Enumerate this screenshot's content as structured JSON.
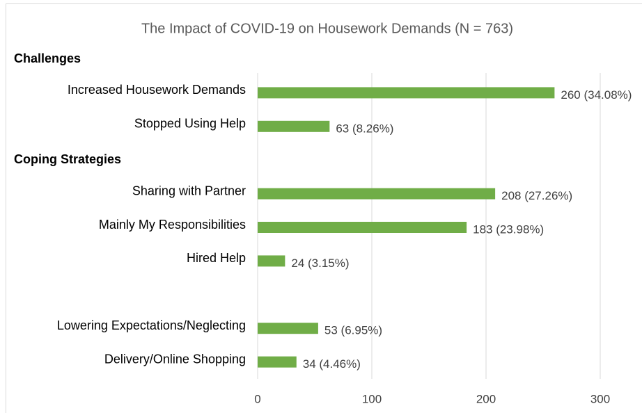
{
  "chart_data": {
    "type": "bar",
    "orientation": "horizontal",
    "title": "The Impact of COVID-19 on Housework Demands (N = 763)",
    "color": "#70ad47",
    "groups": [
      {
        "name": "Challenges",
        "categories": [
          "Increased Housework Demands",
          "Stopped Using Help"
        ],
        "values": [
          260,
          63
        ],
        "value_labels": [
          "260 (34.08%)",
          "63 (8.26%)"
        ]
      },
      {
        "name": "Coping Strategies",
        "categories": [
          "Sharing with Partner",
          "Mainly My Responsibilities",
          "Hired Help",
          null,
          "Lowering Expectations/Neglecting",
          "Delivery/Online Shopping"
        ],
        "values": [
          208,
          183,
          24,
          null,
          53,
          34
        ],
        "value_labels": [
          "208 (27.26%)",
          "183 (23.98%)",
          "24 (3.15%)",
          null,
          "53 (6.95%)",
          "34 (4.46%)"
        ]
      }
    ],
    "xlim": [
      0,
      300
    ],
    "xticks": [
      0,
      100,
      200,
      300
    ],
    "grid": true
  }
}
